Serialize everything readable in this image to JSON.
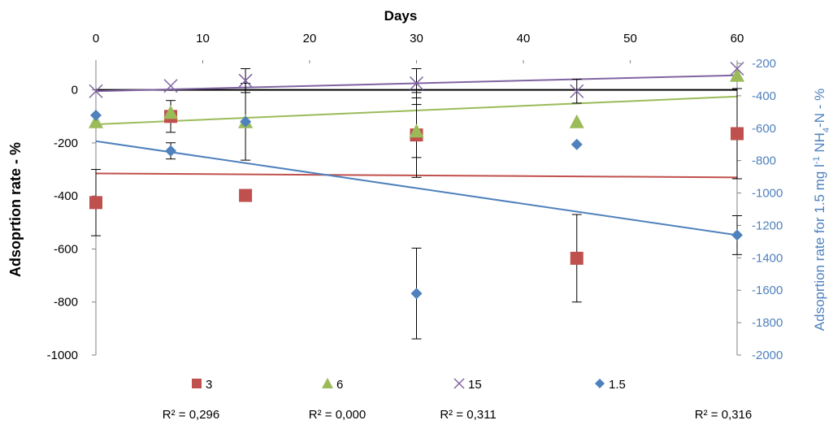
{
  "chart_data": {
    "type": "scatter",
    "x_axis": {
      "title": "Days",
      "range": [
        0,
        60
      ],
      "ticks": [
        0,
        10,
        20,
        30,
        40,
        50,
        60
      ],
      "position": "top"
    },
    "y_axis_left": {
      "title": "Adsoprtion rate - %",
      "range": [
        -1000,
        100
      ],
      "ticks": [
        0,
        -200,
        -400,
        -600,
        -800,
        -1000
      ]
    },
    "y_axis_right": {
      "title_main": "Adsoprtion rate for 1.5 mg l",
      "title_sup": "-1",
      "title_mid": " NH",
      "title_sub": "4",
      "title_end": "-N - %",
      "range": [
        -2000,
        -200
      ],
      "ticks": [
        -200,
        -400,
        -600,
        -800,
        -1000,
        -1200,
        -1400,
        -1600,
        -1800,
        -2000
      ]
    },
    "series": [
      {
        "name": "3",
        "axis": "left",
        "marker": "square",
        "color": "#c0504d",
        "points": [
          {
            "x": 0,
            "y": -425,
            "err": 125
          },
          {
            "x": 7,
            "y": -100,
            "err": 60
          },
          {
            "x": 14,
            "y": -398,
            "err": 0
          },
          {
            "x": 30,
            "y": -170,
            "err": 160
          },
          {
            "x": 45,
            "y": -635,
            "err": 165
          },
          {
            "x": 60,
            "y": -165,
            "err": 170
          }
        ],
        "trend": {
          "y0": -315,
          "y1": -330
        }
      },
      {
        "name": "6",
        "axis": "left",
        "marker": "triangle",
        "color": "#9bbb59",
        "points": [
          {
            "x": 0,
            "y": -120,
            "err": 0
          },
          {
            "x": 7,
            "y": -85,
            "err": 0
          },
          {
            "x": 14,
            "y": -120,
            "err": 145
          },
          {
            "x": 30,
            "y": -155,
            "err": 100
          },
          {
            "x": 45,
            "y": -120,
            "err": 0
          },
          {
            "x": 60,
            "y": 55,
            "err": 0
          }
        ],
        "trend": {
          "y0": -130,
          "y1": -25
        }
      },
      {
        "name": "15",
        "axis": "left",
        "marker": "x",
        "color": "#8064a2",
        "points": [
          {
            "x": 0,
            "y": -5,
            "err": 0
          },
          {
            "x": 7,
            "y": 15,
            "err": 0
          },
          {
            "x": 14,
            "y": 35,
            "err": 45
          },
          {
            "x": 30,
            "y": 25,
            "err": 55
          },
          {
            "x": 45,
            "y": -5,
            "err": 45
          },
          {
            "x": 60,
            "y": 80,
            "err": 0
          }
        ],
        "trend": {
          "y0": -5,
          "y1": 55
        }
      },
      {
        "name": "1.5",
        "axis": "right",
        "marker": "diamond",
        "color": "#4f81bd",
        "points": [
          {
            "x": 0,
            "y": -520,
            "err": 0
          },
          {
            "x": 7,
            "y": -740,
            "err": 50
          },
          {
            "x": 14,
            "y": -560,
            "err": 0
          },
          {
            "x": 30,
            "y": -1620,
            "err": 280
          },
          {
            "x": 45,
            "y": -700,
            "err": 0
          },
          {
            "x": 60,
            "y": -1260,
            "err": 120
          }
        ],
        "trend": {
          "y0": -680,
          "y1": -1260
        }
      }
    ],
    "zero_line_color": "#000000",
    "r2_labels": [
      "R² = 0,296",
      "R² = 0,000",
      "R² = 0,311",
      "R² = 0,316"
    ],
    "legend_position": "bottom",
    "grid": false
  }
}
